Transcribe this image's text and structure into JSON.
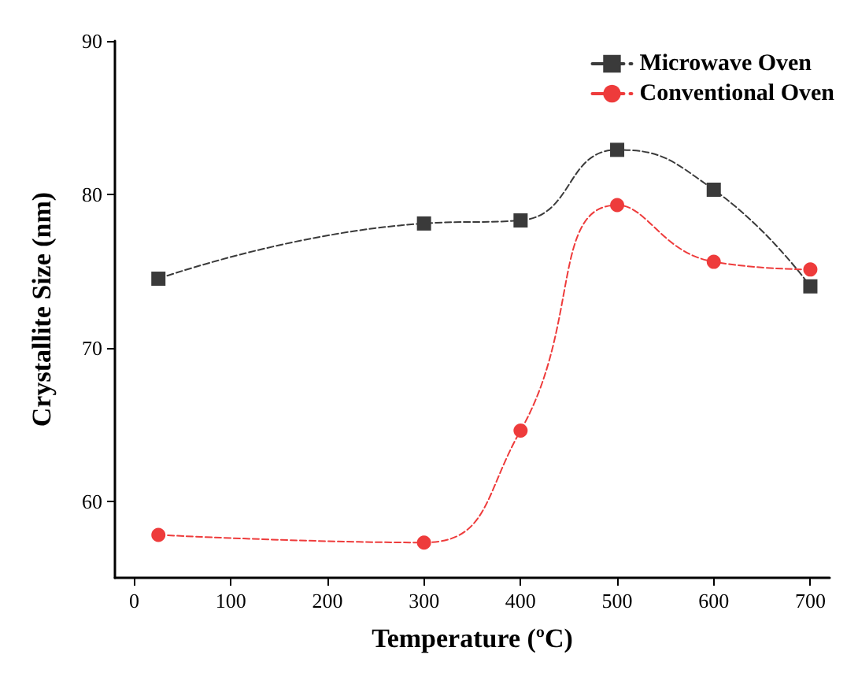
{
  "chart_data": {
    "type": "line",
    "xlabel": "Temperature (ºC)",
    "ylabel": "Crystallite Size (nm)",
    "xlim": [
      -20,
      720
    ],
    "xticks": [
      0,
      100,
      200,
      300,
      400,
      500,
      600,
      700
    ],
    "ylim": [
      55,
      90
    ],
    "yticks": [
      60,
      70,
      80,
      90
    ],
    "x": [
      25,
      300,
      400,
      500,
      600,
      700
    ],
    "legend": "top right",
    "grid": false,
    "line_style": "dashed",
    "series": [
      {
        "name": "Microwave Oven",
        "color": "#3a3a3a",
        "marker": "square",
        "values": [
          74.5,
          78.1,
          78.3,
          82.9,
          80.3,
          74.0
        ]
      },
      {
        "name": "Conventional Oven",
        "color": "#ee3b3b",
        "marker": "circle",
        "values": [
          57.8,
          57.3,
          64.6,
          79.3,
          75.6,
          75.1
        ]
      }
    ]
  }
}
